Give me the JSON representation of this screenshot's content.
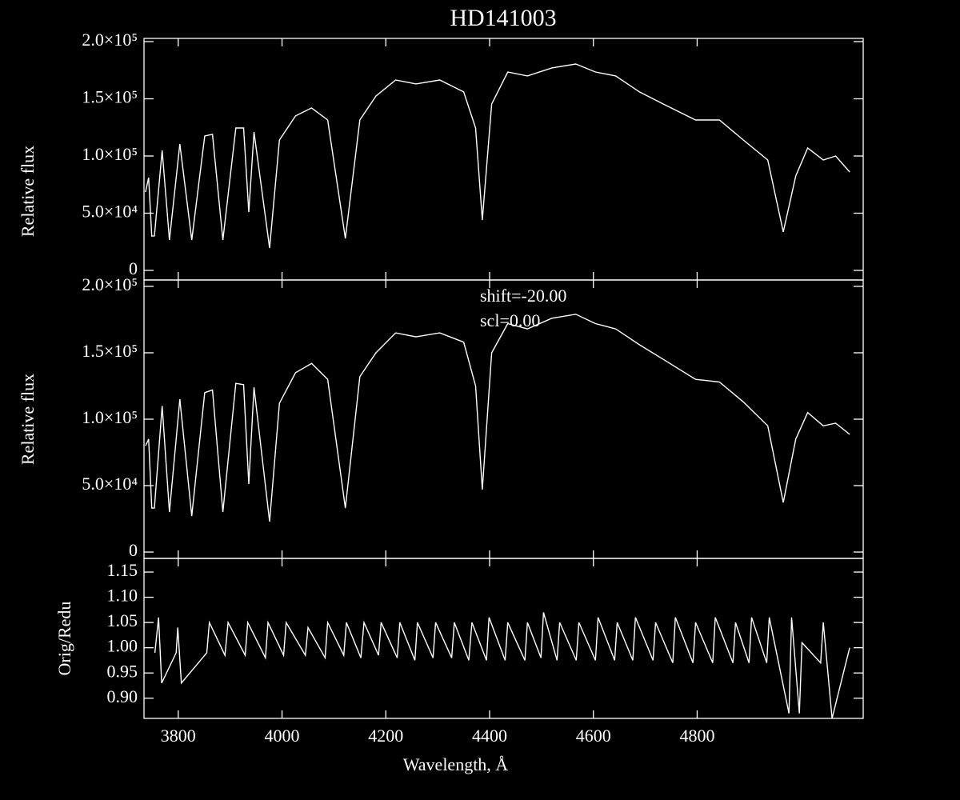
{
  "chart_data": [
    {
      "type": "line",
      "title": "HD141003",
      "ylabel": "Relative flux",
      "color": "#ffffff",
      "ylim": [
        -8400,
        202800
      ],
      "yticks": [
        0,
        {
          "value": 50000,
          "label": "5.0×10⁴"
        },
        {
          "value": 100000,
          "label": "1.0×10⁵"
        },
        {
          "value": 150000,
          "label": "1.5×10⁵"
        },
        {
          "value": 200000,
          "label": "2.0×10⁵"
        }
      ],
      "x": [
        3737,
        3743,
        3749,
        3754,
        3769,
        3783,
        3803,
        3826,
        3851,
        3866,
        3886,
        3911,
        3926,
        3936,
        3946,
        3976,
        3995,
        4026,
        4057,
        4088,
        4122,
        4150,
        4181,
        4219,
        4258,
        4304,
        4350,
        4373,
        4386,
        4404,
        4435,
        4473,
        4520,
        4566,
        4604,
        4643,
        4689,
        4735,
        4797,
        4843,
        4889,
        4936,
        4966,
        4990,
        5013,
        5043,
        5067,
        5094
      ],
      "values": [
        68500,
        81100,
        30000,
        30100,
        104900,
        26600,
        110500,
        26600,
        117500,
        118900,
        26600,
        124500,
        124500,
        51000,
        121000,
        19600,
        114000,
        135000,
        142000,
        131500,
        28000,
        131500,
        152400,
        166400,
        163000,
        166400,
        156000,
        124500,
        44000,
        145400,
        173400,
        170000,
        177000,
        180400,
        173400,
        170000,
        156000,
        145400,
        131500,
        131500,
        114000,
        96500,
        33600,
        82500,
        107000,
        96500,
        100000,
        86000
      ]
    },
    {
      "type": "line",
      "ylabel": "Relative flux",
      "color": "#ffffff",
      "annotations": [
        "shift=-20.00",
        "scl=0.00"
      ],
      "ylim": [
        -4800,
        204800
      ],
      "yticks": [
        0,
        {
          "value": 50000,
          "label": "5.0×10⁴"
        },
        {
          "value": 100000,
          "label": "1.0×10⁵"
        },
        {
          "value": 150000,
          "label": "1.5×10⁵"
        },
        {
          "value": 200000,
          "label": "2.0×10⁵"
        }
      ],
      "x": [
        3737,
        3743,
        3749,
        3754,
        3769,
        3783,
        3803,
        3826,
        3851,
        3866,
        3886,
        3911,
        3926,
        3936,
        3946,
        3976,
        3995,
        4026,
        4057,
        4088,
        4122,
        4150,
        4181,
        4219,
        4258,
        4304,
        4350,
        4373,
        4386,
        4404,
        4435,
        4473,
        4520,
        4566,
        4604,
        4643,
        4689,
        4735,
        4797,
        4843,
        4889,
        4936,
        4966,
        4990,
        5013,
        5043,
        5067,
        5094
      ],
      "values": [
        80000,
        85000,
        33100,
        33100,
        110000,
        30100,
        115000,
        27100,
        120000,
        122000,
        30100,
        127000,
        126000,
        51200,
        124000,
        22900,
        112000,
        135000,
        142000,
        130000,
        33100,
        132000,
        150000,
        165000,
        162000,
        165000,
        158000,
        125000,
        47000,
        150000,
        172000,
        168000,
        176000,
        179000,
        172000,
        168000,
        156000,
        145000,
        130000,
        128000,
        113000,
        95000,
        37300,
        85000,
        105000,
        95000,
        97000,
        88600
      ]
    },
    {
      "type": "line",
      "ylabel": "Orig/Redu",
      "xlabel": "Wavelength, Å",
      "color": "#ffffff",
      "xlim": [
        3734,
        5120
      ],
      "xticks": [
        3800,
        4000,
        4200,
        4400,
        4600,
        4800
      ],
      "ylim": [
        0.86,
        1.177
      ],
      "yticks": [
        {
          "value": 0.9,
          "label": "0.90"
        },
        0.95,
        {
          "value": 1,
          "label": "1.00"
        },
        1.05,
        {
          "value": 1.1,
          "label": "1.10"
        },
        1.15
      ],
      "x": [
        3755,
        3762,
        3768,
        3796,
        3799,
        3806,
        3855,
        3860,
        3890,
        3896,
        3929,
        3934,
        3968,
        3973,
        4003,
        4008,
        4045,
        4050,
        4083,
        4088,
        4119,
        4124,
        4152,
        4158,
        4186,
        4191,
        4222,
        4227,
        4256,
        4261,
        4291,
        4296,
        4327,
        4332,
        4360,
        4366,
        4394,
        4399,
        4430,
        4435,
        4468,
        4473,
        4499,
        4504,
        4530,
        4535,
        4567,
        4572,
        4604,
        4609,
        4641,
        4646,
        4676,
        4681,
        4715,
        4720,
        4753,
        4758,
        4792,
        4797,
        4830,
        4835,
        4869,
        4874,
        4900,
        4905,
        4934,
        4939,
        4977,
        4982,
        4997,
        5002,
        5038,
        5043,
        5060,
        5094
      ],
      "values": [
        0.99,
        1.06,
        0.93,
        0.99,
        1.04,
        0.93,
        0.99,
        1.05,
        0.985,
        1.05,
        0.985,
        1.05,
        0.98,
        1.05,
        0.985,
        1.05,
        0.985,
        1.04,
        0.98,
        1.05,
        0.985,
        1.05,
        0.98,
        1.05,
        0.985,
        1.05,
        0.98,
        1.05,
        0.975,
        1.05,
        0.98,
        1.05,
        0.98,
        1.05,
        0.975,
        1.05,
        0.975,
        1.06,
        0.975,
        1.05,
        0.975,
        1.05,
        0.98,
        1.07,
        0.975,
        1.05,
        0.975,
        1.05,
        0.975,
        1.06,
        0.975,
        1.05,
        0.975,
        1.06,
        0.975,
        1.05,
        0.97,
        1.06,
        0.97,
        1.05,
        0.97,
        1.06,
        0.97,
        1.05,
        0.97,
        1.06,
        0.97,
        1.06,
        0.87,
        1.06,
        0.87,
        1.01,
        0.97,
        1.05,
        0.86,
        1.0
      ]
    }
  ]
}
